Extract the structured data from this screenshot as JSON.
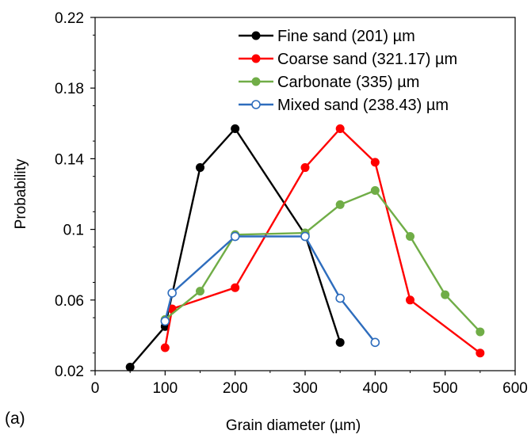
{
  "panel_label": "(a)",
  "chart_data": {
    "type": "line",
    "xlabel": "Grain diameter (µm)",
    "ylabel": "Probability",
    "xlim": [
      0,
      600
    ],
    "ylim": [
      0.02,
      0.22
    ],
    "xticks": [
      0,
      100,
      200,
      300,
      400,
      500,
      600
    ],
    "yticks": [
      0.02,
      0.06,
      0.1,
      0.14,
      0.18,
      0.22
    ],
    "xtick_labels": [
      "0",
      "100",
      "200",
      "300",
      "400",
      "500",
      "600"
    ],
    "ytick_labels": [
      "0.02",
      "0.06",
      "0.1",
      "0.14",
      "0.18",
      "0.22"
    ],
    "grid": false,
    "legend_position": "top-right",
    "series": [
      {
        "name": "Fine sand (201) µm",
        "color": "#000000",
        "marker": "filled-circle",
        "x": [
          50,
          100,
          150,
          200,
          300,
          350
        ],
        "y": [
          0.022,
          0.045,
          0.135,
          0.157,
          0.097,
          0.036
        ]
      },
      {
        "name": "Coarse sand (321.17) µm",
        "color": "#ff0000",
        "marker": "filled-circle",
        "x": [
          100,
          110,
          200,
          300,
          350,
          400,
          450,
          550
        ],
        "y": [
          0.033,
          0.055,
          0.067,
          0.135,
          0.157,
          0.138,
          0.06,
          0.03
        ]
      },
      {
        "name": "Carbonate (335) µm",
        "color": "#70ad47",
        "marker": "filled-circle",
        "x": [
          100,
          150,
          200,
          300,
          350,
          400,
          450,
          500,
          550
        ],
        "y": [
          0.049,
          0.065,
          0.097,
          0.098,
          0.114,
          0.122,
          0.096,
          0.063,
          0.042
        ]
      },
      {
        "name": "Mixed sand (238.43) µm",
        "color": "#2e6dbd",
        "marker": "open-circle",
        "x": [
          100,
          110,
          200,
          300,
          350,
          400
        ],
        "y": [
          0.048,
          0.064,
          0.096,
          0.096,
          0.061,
          0.036
        ]
      }
    ]
  }
}
